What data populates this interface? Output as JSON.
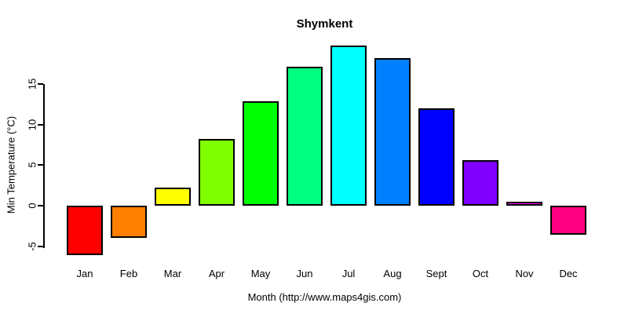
{
  "chart_data": {
    "type": "bar",
    "title": "Shymkent",
    "xlabel": "Month (http://www.maps4gis.com)",
    "ylabel": "Min Temperature (°C)",
    "categories": [
      "Jan",
      "Feb",
      "Mar",
      "Apr",
      "May",
      "Jun",
      "Jul",
      "Aug",
      "Sept",
      "Oct",
      "Nov",
      "Dec"
    ],
    "values": [
      -6.1,
      -4.0,
      2.2,
      8.2,
      12.9,
      17.1,
      19.7,
      18.2,
      12.0,
      5.6,
      0.5,
      -3.6
    ],
    "bar_colors": [
      "#FF0000",
      "#FF8000",
      "#FFFF00",
      "#80FF00",
      "#00FF00",
      "#00FF80",
      "#00FFFF",
      "#0080FF",
      "#0000FF",
      "#8000FF",
      "#FF00FF",
      "#FF0080"
    ],
    "bar_border_color": "#000000",
    "axis_color": "#000000",
    "yticks": [
      -5,
      0,
      5,
      10,
      15
    ],
    "ylim": [
      -6.5,
      20
    ],
    "grid": false,
    "legend_position": "none"
  }
}
